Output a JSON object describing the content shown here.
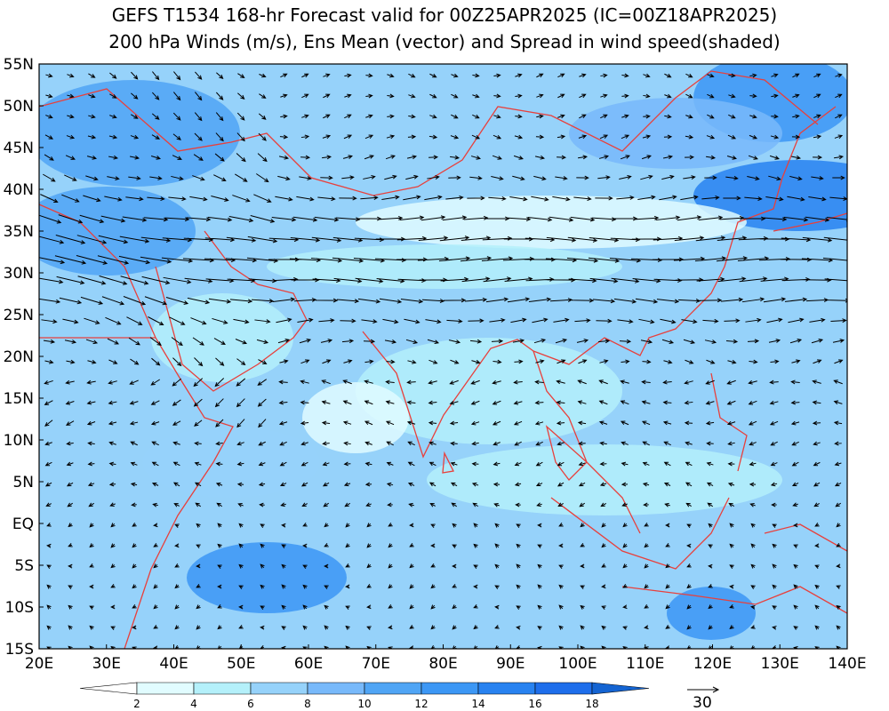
{
  "header": {
    "title": "GEFS T1534 168-hr Forecast valid for 00Z25APR2025 (IC=00Z18APR2025)",
    "subtitle": "200 hPa Winds (m/s), Ens Mean (vector) and Spread in wind speed(shaded)"
  },
  "map": {
    "lat_labels": [
      "55N",
      "50N",
      "45N",
      "40N",
      "35N",
      "30N",
      "25N",
      "20N",
      "15N",
      "10N",
      "5N",
      "EQ",
      "5S",
      "10S",
      "15S"
    ],
    "lon_labels": [
      "20E",
      "30E",
      "40E",
      "50E",
      "60E",
      "70E",
      "80E",
      "90E",
      "100E",
      "110E",
      "120E",
      "130E",
      "140E"
    ]
  },
  "colorbar": {
    "levels": [
      2,
      4,
      6,
      8,
      10,
      12,
      14,
      16,
      18
    ],
    "colors": [
      "#ffffff",
      "#e1fcff",
      "#b4f0fa",
      "#96d2fa",
      "#78b9fa",
      "#50a5f5",
      "#3c97f5",
      "#2882f0",
      "#1e6eeb",
      "#1464d2"
    ]
  },
  "reference_vector": {
    "label": "30"
  }
}
